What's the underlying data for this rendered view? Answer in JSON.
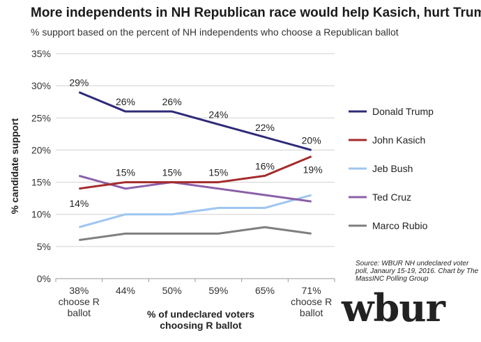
{
  "title": "More independents in NH Republican race would help Kasich, hurt Trump",
  "subtitle": "% support based on the percent of NH independents who choose  a Republican ballot",
  "source": "Source: WBUR NH undeclared voter poll, Janaury 15-19, 2016. Chart by The MassINC Polling Group",
  "logo": "wbur",
  "chart_data": {
    "type": "line",
    "categories": [
      "38%\nchoose R\nballot",
      "44%",
      "50%",
      "59%",
      "65%",
      "71%\nchoose R\nballot"
    ],
    "ylabel": "% candidate support",
    "xlabel": "% of undeclared voters\nchoosing R ballot",
    "ylim": [
      0,
      35
    ],
    "yticks": [
      "0%",
      "5%",
      "10%",
      "15%",
      "20%",
      "25%",
      "30%",
      "35%"
    ],
    "grid": true,
    "legend_position": "right",
    "series": [
      {
        "name": "Donald Trump",
        "color": "#2e2a78",
        "values": [
          29,
          26,
          26,
          24,
          22,
          20
        ],
        "labels": [
          "29%",
          "26%",
          "26%",
          "24%",
          "22%",
          "20%"
        ]
      },
      {
        "name": "John Kasich",
        "color": "#a52a2a",
        "values": [
          14,
          15,
          15,
          15,
          16,
          19
        ],
        "labels": [
          "14%",
          "15%",
          "15%",
          "15%",
          "16%",
          "19%"
        ]
      },
      {
        "name": "Jeb Bush",
        "color": "#9ec5f2",
        "values": [
          8,
          10,
          10,
          11,
          11,
          13
        ]
      },
      {
        "name": "Ted Cruz",
        "color": "#8b5fa8",
        "values": [
          16,
          14,
          15,
          14,
          13,
          12
        ]
      },
      {
        "name": "Marco Rubio",
        "color": "#7f7f7f",
        "values": [
          6,
          7,
          7,
          7,
          8,
          7
        ]
      }
    ]
  }
}
